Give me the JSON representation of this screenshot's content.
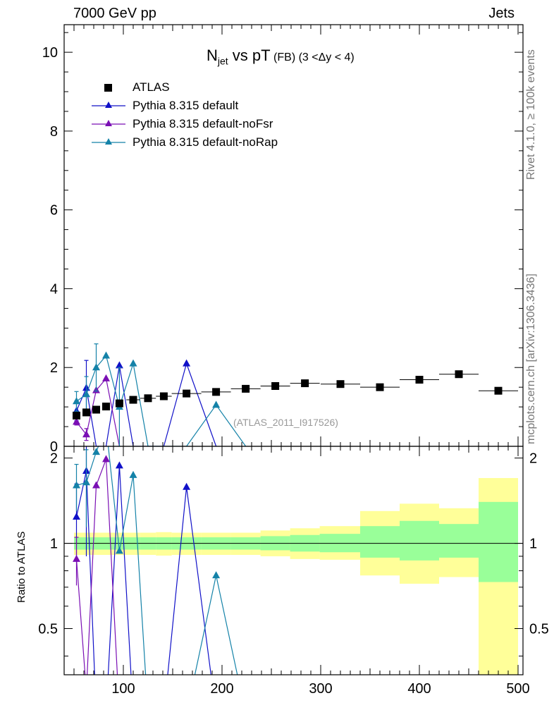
{
  "header": {
    "left": "7000 GeV pp",
    "right": "Jets"
  },
  "side_labels": {
    "top": "Rivet 4.1.0, ≥ 100k events",
    "bottom": "mcplots.cern.ch [arXiv:1306.3436]"
  },
  "title": {
    "main_pre": "N",
    "main_sub": "jet",
    "main_post": " vs pT",
    "qual": " (FB) (3 <Δy < 4)"
  },
  "watermark": "(ATLAS_2011_I917526)",
  "ratio_ylabel": "Ratio to ATLAS",
  "colors": {
    "data": "#000000",
    "default": "#1010c8",
    "noFsr": "#7a0fb4",
    "noRap": "#1482a8",
    "band_outer": "#ffff99",
    "band_inner": "#99ff99"
  },
  "chart_data": {
    "type": "scatter",
    "title": "Njet vs pT (FB) (3 <Δy < 4)",
    "xlabel": "",
    "ylabel": "",
    "xlim": [
      40,
      505
    ],
    "xticks": [
      100,
      200,
      300,
      400,
      500
    ],
    "ylim": [
      0,
      10.7
    ],
    "yticks": [
      0,
      2,
      4,
      6,
      8,
      10
    ],
    "ratio_ylim": [
      0.3435,
      2.2
    ],
    "ratio_yticks": [
      0.5,
      1,
      2
    ],
    "ratio_ylabel": "Ratio to ATLAS",
    "legend": [
      "ATLAS",
      "Pythia 8.315 default",
      "Pythia 8.315 default-noFsr",
      "Pythia 8.315 default-noRap"
    ],
    "atlas": {
      "name": "ATLAS",
      "x": [
        52.5,
        62.5,
        72.5,
        82.5,
        96,
        110,
        125,
        141,
        164,
        194,
        224,
        254,
        284,
        320,
        360,
        400,
        440,
        480
      ],
      "y": [
        0.78,
        0.86,
        0.93,
        1.01,
        1.09,
        1.18,
        1.22,
        1.27,
        1.34,
        1.38,
        1.46,
        1.53,
        1.6,
        1.58,
        1.5,
        1.69,
        1.83,
        1.41
      ],
      "xerr": [
        2.5,
        2.5,
        2.5,
        2.5,
        4,
        7,
        8,
        8,
        15,
        15,
        15,
        15,
        15,
        20,
        20,
        20,
        20,
        20
      ]
    },
    "ratio_bands": [
      {
        "x1": 50,
        "x2": 55,
        "outer": [
          0.91,
          1.09
        ],
        "inner": [
          0.95,
          1.05
        ]
      },
      {
        "x1": 55,
        "x2": 60,
        "outer": [
          0.91,
          1.09
        ],
        "inner": [
          0.95,
          1.05
        ]
      },
      {
        "x1": 60,
        "x2": 65,
        "outer": [
          0.91,
          1.09
        ],
        "inner": [
          0.95,
          1.05
        ]
      },
      {
        "x1": 65,
        "x2": 70,
        "outer": [
          0.91,
          1.09
        ],
        "inner": [
          0.95,
          1.05
        ]
      },
      {
        "x1": 70,
        "x2": 75,
        "outer": [
          0.91,
          1.09
        ],
        "inner": [
          0.95,
          1.05
        ]
      },
      {
        "x1": 75,
        "x2": 80,
        "outer": [
          0.91,
          1.09
        ],
        "inner": [
          0.95,
          1.05
        ]
      },
      {
        "x1": 80,
        "x2": 85,
        "outer": [
          0.91,
          1.09
        ],
        "inner": [
          0.95,
          1.05
        ]
      },
      {
        "x1": 85,
        "x2": 92,
        "outer": [
          0.91,
          1.09
        ],
        "inner": [
          0.95,
          1.05
        ]
      },
      {
        "x1": 92,
        "x2": 100,
        "outer": [
          0.91,
          1.09
        ],
        "inner": [
          0.95,
          1.05
        ]
      },
      {
        "x1": 100,
        "x2": 117,
        "outer": [
          0.91,
          1.09
        ],
        "inner": [
          0.95,
          1.05
        ]
      },
      {
        "x1": 117,
        "x2": 133,
        "outer": [
          0.91,
          1.09
        ],
        "inner": [
          0.95,
          1.05
        ]
      },
      {
        "x1": 133,
        "x2": 149,
        "outer": [
          0.905,
          1.095
        ],
        "inner": [
          0.95,
          1.05
        ]
      },
      {
        "x1": 149,
        "x2": 179,
        "outer": [
          0.91,
          1.09
        ],
        "inner": [
          0.95,
          1.05
        ]
      },
      {
        "x1": 179,
        "x2": 209,
        "outer": [
          0.91,
          1.09
        ],
        "inner": [
          0.95,
          1.05
        ]
      },
      {
        "x1": 209,
        "x2": 239,
        "outer": [
          0.91,
          1.09
        ],
        "inner": [
          0.95,
          1.05
        ]
      },
      {
        "x1": 239,
        "x2": 269,
        "outer": [
          0.9,
          1.11
        ],
        "inner": [
          0.945,
          1.06
        ]
      },
      {
        "x1": 269,
        "x2": 299,
        "outer": [
          0.88,
          1.13
        ],
        "inner": [
          0.935,
          1.07
        ]
      },
      {
        "x1": 299,
        "x2": 340,
        "outer": [
          0.875,
          1.15
        ],
        "inner": [
          0.93,
          1.08
        ]
      },
      {
        "x1": 340,
        "x2": 380,
        "outer": [
          0.77,
          1.3
        ],
        "inner": [
          0.89,
          1.15
        ]
      },
      {
        "x1": 380,
        "x2": 420,
        "outer": [
          0.72,
          1.38
        ],
        "inner": [
          0.87,
          1.2
        ]
      },
      {
        "x1": 420,
        "x2": 460,
        "outer": [
          0.76,
          1.33
        ],
        "inner": [
          0.89,
          1.17
        ]
      },
      {
        "x1": 460,
        "x2": 500,
        "outer": [
          0.34,
          1.7
        ],
        "inner": [
          0.73,
          1.4
        ]
      }
    ],
    "series": [
      {
        "name": "Pythia 8.315 default",
        "color": "#1010c8",
        "x": [
          52.5,
          62.5,
          72.5,
          82.5,
          96,
          110,
          125,
          141,
          164,
          194
        ],
        "y": [
          0.9,
          1.48,
          0.0,
          0.0,
          2.05,
          0.0,
          0.0,
          0.0,
          2.1,
          0.0
        ],
        "yerr": [
          0.25,
          0.7,
          0.0,
          0.0,
          0.0,
          0.0,
          0.0,
          0.0,
          0.0,
          0.0
        ],
        "ratio_y": [
          1.24,
          1.8,
          0.0,
          0.0,
          1.88,
          0.0,
          0.0,
          0.0,
          1.58,
          0.0
        ],
        "ratio_yerr": [
          0.38,
          0.9,
          0.0,
          0.0,
          0.0,
          0.0,
          0.0,
          0.0,
          0.0,
          0.0
        ]
      },
      {
        "name": "Pythia 8.315 default-noFsr",
        "color": "#7a0fb4",
        "x": [
          52.5,
          62.5,
          72.5,
          82.5,
          96
        ],
        "y": [
          0.62,
          0.3,
          1.42,
          1.72,
          0.0
        ],
        "yerr": [
          0.08,
          0.15,
          0.0,
          0.0,
          0.0
        ],
        "ratio_y": [
          0.88,
          0.3,
          1.6,
          1.98,
          0.0
        ],
        "ratio_yerr": [
          0.17,
          0.0,
          0.0,
          0.0,
          0.0
        ]
      },
      {
        "name": "Pythia 8.315 default-noRap",
        "color": "#1482a8",
        "x": [
          52.5,
          62.5,
          72.5,
          82.5,
          96,
          110,
          125,
          141,
          164,
          194,
          224
        ],
        "y": [
          1.14,
          1.32,
          2.0,
          2.3,
          1.0,
          2.1,
          0.0,
          0.0,
          0.0,
          1.05,
          0.0
        ],
        "yerr": [
          0.25,
          0.45,
          0.6,
          0.0,
          1.0,
          0.0,
          0.0,
          0.0,
          0.0,
          0.0,
          0.0
        ],
        "ratio_y": [
          1.6,
          1.64,
          2.1,
          2.6,
          0.94,
          1.74,
          0.0,
          0.0,
          0.0,
          0.77,
          0.0
        ],
        "ratio_yerr": [
          0.3,
          0.5,
          0.0,
          0.0,
          0.0,
          0.0,
          0.0,
          0.0,
          0.0,
          0.0,
          0.0
        ]
      }
    ]
  }
}
